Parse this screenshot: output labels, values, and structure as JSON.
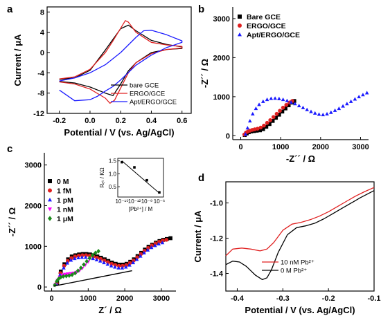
{
  "chart_data": [
    {
      "panel": "a",
      "type": "line",
      "xlabel": "Potential / V (vs. Ag/AgCl)",
      "ylabel": "Current / μA",
      "xlim": [
        -0.28,
        0.66
      ],
      "ylim": [
        -12,
        9
      ],
      "xticks": [
        "-0.2",
        "0.0",
        "0.2",
        "0.4",
        "0.6"
      ],
      "xtick_values": [
        -0.2,
        0.0,
        0.2,
        0.4,
        0.6
      ],
      "yticks": [
        "-12",
        "-8",
        "-4",
        "0",
        "4",
        "8"
      ],
      "ytick_values": [
        -12,
        -8,
        -4,
        0,
        4,
        8
      ],
      "legend_position": "bottom-right",
      "series": [
        {
          "name": "bare GCE",
          "color": "#000000",
          "x": [
            -0.2,
            -0.1,
            0.0,
            0.1,
            0.15,
            0.2,
            0.25,
            0.3,
            0.4,
            0.5,
            0.6,
            0.6,
            0.5,
            0.4,
            0.3,
            0.25,
            0.2,
            0.15,
            0.1,
            0.0,
            -0.1,
            -0.2
          ],
          "y": [
            -5.3,
            -5.0,
            -3.5,
            0.5,
            2.6,
            4.7,
            5.4,
            4.3,
            2.4,
            1.6,
            1.1,
            0.8,
            0.6,
            0.0,
            -2.0,
            -3.6,
            -6.2,
            -8.5,
            -8.0,
            -6.8,
            -6.0,
            -5.7
          ]
        },
        {
          "name": "ERGO/GCE",
          "color": "#e02020",
          "x": [
            -0.2,
            -0.1,
            0.0,
            0.1,
            0.15,
            0.2,
            0.23,
            0.25,
            0.3,
            0.4,
            0.5,
            0.6,
            0.6,
            0.5,
            0.4,
            0.3,
            0.25,
            0.2,
            0.16,
            0.13,
            0.1,
            0.0,
            -0.1,
            -0.2
          ],
          "y": [
            -5.2,
            -4.8,
            -3.3,
            0.0,
            2.3,
            4.8,
            6.3,
            6.0,
            4.0,
            2.0,
            1.5,
            1.2,
            0.9,
            0.6,
            -0.2,
            -2.0,
            -4.0,
            -7.0,
            -9.4,
            -10.0,
            -9.0,
            -7.2,
            -6.2,
            -5.8
          ]
        },
        {
          "name": "Apt/ERGO/GCE",
          "color": "#1a1aff",
          "x": [
            -0.2,
            -0.1,
            0.0,
            0.1,
            0.2,
            0.3,
            0.35,
            0.4,
            0.5,
            0.6,
            0.6,
            0.5,
            0.4,
            0.3,
            0.2,
            0.15,
            0.1,
            0.05,
            0.0,
            -0.1,
            -0.2
          ],
          "y": [
            -5.6,
            -5.0,
            -4.0,
            -2.4,
            0.0,
            3.0,
            4.3,
            4.4,
            3.5,
            2.3,
            2.0,
            1.0,
            -0.5,
            -2.5,
            -5.4,
            -6.7,
            -7.6,
            -8.6,
            -9.3,
            -9.5,
            -7.4
          ]
        }
      ]
    },
    {
      "panel": "b",
      "type": "scatter",
      "xlabel": "-Z´´ / Ω",
      "ylabel": "-Z´´ / Ω",
      "xlim": [
        -200,
        3200
      ],
      "ylim": [
        -100,
        3300
      ],
      "xticks": [
        "0",
        "1000",
        "2000",
        "3000"
      ],
      "xtick_values": [
        0,
        1000,
        2000,
        3000
      ],
      "yticks": [
        "0",
        "1000",
        "2000",
        "3000"
      ],
      "ytick_values": [
        0,
        1000,
        2000,
        3000
      ],
      "legend_position": "top-right",
      "series": [
        {
          "name": "Bare GCE",
          "color": "#000000",
          "marker": "square",
          "x": [
            100,
            150,
            200,
            260,
            330,
            400,
            480,
            560,
            640,
            720,
            800,
            880,
            960,
            1040,
            1120,
            1200,
            1280,
            1340
          ],
          "y": [
            20,
            60,
            90,
            110,
            120,
            130,
            140,
            170,
            230,
            300,
            380,
            460,
            540,
            620,
            700,
            780,
            850,
            890
          ]
        },
        {
          "name": "ERGO/GCE",
          "color": "#e02020",
          "marker": "circle",
          "x": [
            90,
            130,
            180,
            230,
            290,
            350,
            420,
            500,
            580,
            660,
            740,
            820,
            900,
            980,
            1060,
            1140,
            1220,
            1290
          ],
          "y": [
            30,
            80,
            110,
            130,
            150,
            165,
            180,
            210,
            260,
            330,
            400,
            480,
            560,
            640,
            720,
            790,
            850,
            890
          ]
        },
        {
          "name": "Apt/ERGO/GCE",
          "color": "#1a1aff",
          "marker": "triangle",
          "x": [
            120,
            170,
            230,
            300,
            380,
            460,
            560,
            660,
            760,
            860,
            960,
            1060,
            1160,
            1260,
            1360,
            1460,
            1560,
            1660,
            1760,
            1860,
            1960,
            2060,
            2160,
            2260,
            2360,
            2460,
            2560,
            2660,
            2760,
            2860,
            2960,
            3060,
            3160
          ],
          "y": [
            40,
            200,
            380,
            560,
            700,
            800,
            880,
            930,
            955,
            960,
            950,
            930,
            900,
            860,
            820,
            770,
            720,
            670,
            620,
            580,
            550,
            540,
            560,
            600,
            650,
            700,
            760,
            820,
            880,
            940,
            1000,
            1050,
            1100
          ]
        }
      ]
    },
    {
      "panel": "c",
      "type": "scatter",
      "xlabel": "Z´ / Ω",
      "ylabel": "-Z´´ / Ω",
      "xlim": [
        -200,
        3400
      ],
      "ylim": [
        -100,
        3300
      ],
      "xticks": [
        "0",
        "1000",
        "2000",
        "3000"
      ],
      "xtick_values": [
        0,
        1000,
        2000,
        3000
      ],
      "yticks": [
        "0",
        "1000",
        "2000",
        "3000"
      ],
      "ytick_values": [
        0,
        1000,
        2000,
        3000
      ],
      "legend_position": "top-left",
      "series": [
        {
          "name": "0 M",
          "color": "#000000",
          "marker": "square",
          "x": [
            150,
            250,
            350,
            450,
            550,
            650,
            750,
            850,
            950,
            1050,
            1150,
            1250,
            1350,
            1450,
            1550,
            1650,
            1750,
            1850,
            1950,
            2050,
            2150,
            2250,
            2350,
            2450,
            2550,
            2650,
            2750,
            2850,
            2950,
            3050,
            3150,
            3250
          ],
          "y": [
            100,
            380,
            560,
            680,
            750,
            780,
            800,
            810,
            810,
            800,
            780,
            750,
            720,
            680,
            640,
            600,
            570,
            550,
            550,
            570,
            620,
            680,
            760,
            840,
            920,
            990,
            1040,
            1090,
            1130,
            1160,
            1180,
            1200
          ]
        },
        {
          "name": "1 fM",
          "color": "#e02020",
          "marker": "circle",
          "x": [
            140,
            240,
            340,
            440,
            540,
            640,
            740,
            840,
            940,
            1040,
            1140,
            1240,
            1340,
            1440,
            1540,
            1640,
            1740,
            1840,
            1940,
            2040,
            2140,
            2240,
            2340,
            2440,
            2540,
            2640,
            2740,
            2840,
            2940,
            3040,
            3140
          ],
          "y": [
            90,
            340,
            520,
            640,
            710,
            750,
            770,
            780,
            780,
            770,
            750,
            720,
            690,
            650,
            610,
            570,
            540,
            520,
            520,
            540,
            590,
            650,
            730,
            810,
            890,
            960,
            1020,
            1070,
            1110,
            1140,
            1160
          ]
        },
        {
          "name": "1 pM",
          "color": "#1a1aff",
          "marker": "triangle",
          "x": [
            130,
            230,
            330,
            430,
            530,
            630,
            730,
            830,
            930,
            1030,
            1130,
            1230,
            1330,
            1430,
            1530,
            1630,
            1730,
            1830,
            1930,
            2030,
            2130,
            2230,
            2330,
            2430,
            2530,
            2630,
            2730,
            2830,
            2930,
            3030
          ],
          "y": [
            80,
            300,
            470,
            590,
            660,
            700,
            720,
            730,
            730,
            720,
            700,
            670,
            640,
            600,
            560,
            520,
            490,
            470,
            470,
            490,
            540,
            600,
            680,
            760,
            840,
            910,
            970,
            1020,
            1060,
            1090
          ]
        },
        {
          "name": "1 nM",
          "color": "#ff00ff",
          "marker": "triangle-down",
          "x": [
            100,
            160,
            220,
            290,
            360,
            440,
            520,
            600,
            680,
            760,
            840,
            920,
            1000
          ],
          "y": [
            60,
            160,
            240,
            290,
            310,
            320,
            330,
            340,
            360,
            400,
            460,
            540,
            620
          ]
        },
        {
          "name": "1 μM",
          "color": "#1a8a1a",
          "marker": "diamond",
          "x": [
            90,
            140,
            190,
            250,
            320,
            400,
            480,
            560,
            640,
            720,
            800,
            880,
            960,
            1040,
            1120,
            1200,
            1280
          ],
          "y": [
            50,
            140,
            200,
            240,
            260,
            270,
            280,
            300,
            340,
            400,
            470,
            550,
            630,
            710,
            780,
            840,
            880
          ]
        }
      ],
      "fit_line": {
        "x": [
          50,
          2200
        ],
        "y": [
          20,
          400
        ]
      },
      "inset": {
        "xlabel": "[Pb²⁺] / M",
        "ylabel": "Rₑₜ / KΩ",
        "xticks": [
          "10⁻¹⁵",
          "10⁻¹²",
          "10⁻⁹",
          "10⁻⁶"
        ],
        "yticks": [
          "0.5",
          "1.0",
          "1.5"
        ],
        "points": {
          "log_x": [
            -15,
            -12,
            -9,
            -6
          ],
          "y": [
            1.45,
            1.25,
            0.75,
            0.28
          ]
        },
        "fit": {
          "log_x": [
            -15,
            -6
          ],
          "y": [
            1.5,
            0.25
          ]
        }
      }
    },
    {
      "panel": "d",
      "type": "line",
      "xlabel": "Potential / V (vs. Ag/AgCl)",
      "ylabel": "Current / μA",
      "xlim": [
        -0.425,
        -0.1
      ],
      "ylim": [
        -1.5,
        -0.88
      ],
      "xticks": [
        "-0.4",
        "-0.3",
        "-0.2",
        "-0.1"
      ],
      "xtick_values": [
        -0.4,
        -0.3,
        -0.2,
        -0.1
      ],
      "yticks": [
        "-1.4",
        "-1.2",
        "-1.0"
      ],
      "ytick_values": [
        -1.4,
        -1.2,
        -1.0
      ],
      "legend_position": "bottom-right",
      "series": [
        {
          "name": "10 nM Pb²⁺",
          "color": "#e02020",
          "x": [
            -0.425,
            -0.41,
            -0.39,
            -0.37,
            -0.35,
            -0.335,
            -0.32,
            -0.3,
            -0.28,
            -0.26,
            -0.24,
            -0.22,
            -0.2,
            -0.18,
            -0.16,
            -0.14,
            -0.12,
            -0.1
          ],
          "y": [
            -1.3,
            -1.262,
            -1.256,
            -1.262,
            -1.272,
            -1.262,
            -1.225,
            -1.155,
            -1.12,
            -1.11,
            -1.095,
            -1.075,
            -1.05,
            -1.02,
            -0.99,
            -0.96,
            -0.935,
            -0.912
          ]
        },
        {
          "name": "0 M Pb²⁺",
          "color": "#000000",
          "x": [
            -0.425,
            -0.41,
            -0.395,
            -0.38,
            -0.36,
            -0.345,
            -0.335,
            -0.325,
            -0.31,
            -0.29,
            -0.27,
            -0.25,
            -0.23,
            -0.21,
            -0.19,
            -0.17,
            -0.15,
            -0.13,
            -0.1
          ],
          "y": [
            -1.35,
            -1.33,
            -1.335,
            -1.36,
            -1.41,
            -1.435,
            -1.425,
            -1.38,
            -1.28,
            -1.18,
            -1.14,
            -1.13,
            -1.115,
            -1.09,
            -1.06,
            -1.03,
            -1.0,
            -0.97,
            -0.93
          ]
        }
      ]
    }
  ]
}
